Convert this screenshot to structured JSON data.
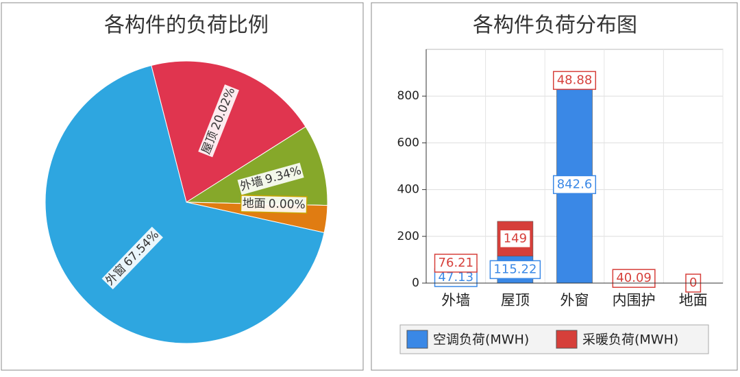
{
  "chart_data": [
    {
      "type": "pie",
      "title": "各构件的负荷比例",
      "categories": [
        "屋顶",
        "外墙",
        "地面",
        null,
        "外窗"
      ],
      "values": [
        20.02,
        9.34,
        0,
        3.1,
        67.54
      ],
      "value_labels": [
        "20.02%",
        "9.34%",
        "0.00%",
        null,
        "67.54%"
      ],
      "colors": [
        "#e0354f",
        "#86a82a",
        "#c9a400",
        "#e07c12",
        "#2ea6e0"
      ]
    },
    {
      "type": "bar",
      "stacked": true,
      "title": "各构件负荷分布图",
      "categories": [
        "外墙",
        "屋顶",
        "外窗",
        "内围护",
        "地面"
      ],
      "series": [
        {
          "name": "空调负荷(MWH)",
          "color": "#3a88e6",
          "values": [
            47.13,
            115.22,
            842.6,
            null,
            null
          ]
        },
        {
          "name": "采暖负荷(MWH)",
          "color": "#d63f3a",
          "values": [
            76.21,
            149,
            48.88,
            40.09,
            0
          ]
        }
      ],
      "ylim": [
        0,
        1000
      ],
      "yticks": [
        0,
        200,
        400,
        600,
        800
      ],
      "grid": true,
      "legend": "bottom"
    }
  ]
}
